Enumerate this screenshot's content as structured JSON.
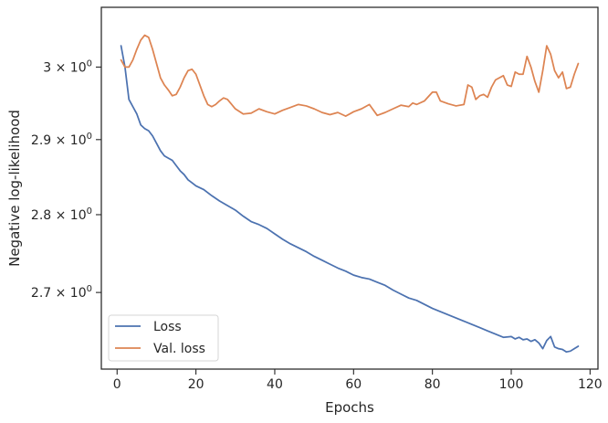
{
  "chart_data": {
    "type": "line",
    "xlabel": "Epochs",
    "ylabel": "Negative log-likelihood",
    "xlim": [
      -4,
      122
    ],
    "ylim": [
      2.605,
      3.085
    ],
    "yscale": "log",
    "grid": false,
    "legend": {
      "placement": "bottom-left"
    },
    "x_ticks": [
      {
        "value": 0,
        "label": "0"
      },
      {
        "value": 20,
        "label": "20"
      },
      {
        "value": 40,
        "label": "40"
      },
      {
        "value": 60,
        "label": "60"
      },
      {
        "value": 80,
        "label": "80"
      },
      {
        "value": 100,
        "label": "100"
      },
      {
        "value": 120,
        "label": "120"
      }
    ],
    "y_ticks": [
      {
        "value": 2.7,
        "base": "2.7 × 10",
        "exp": "0"
      },
      {
        "value": 2.8,
        "base": "2.8 × 10",
        "exp": "0"
      },
      {
        "value": 2.9,
        "base": "2.9 × 10",
        "exp": "0"
      },
      {
        "value": 3.0,
        "base": "3 × 10",
        "exp": "0"
      }
    ],
    "series": [
      {
        "name": "Loss",
        "color": "#4c72b0",
        "points": [
          [
            1,
            3.03
          ],
          [
            2,
            3.0
          ],
          [
            3,
            2.955
          ],
          [
            4,
            2.945
          ],
          [
            5,
            2.935
          ],
          [
            6,
            2.92
          ],
          [
            7,
            2.915
          ],
          [
            8,
            2.912
          ],
          [
            9,
            2.905
          ],
          [
            10,
            2.895
          ],
          [
            11,
            2.885
          ],
          [
            12,
            2.878
          ],
          [
            13,
            2.875
          ],
          [
            14,
            2.872
          ],
          [
            15,
            2.865
          ],
          [
            16,
            2.858
          ],
          [
            17,
            2.853
          ],
          [
            18,
            2.846
          ],
          [
            19,
            2.842
          ],
          [
            20,
            2.838
          ],
          [
            22,
            2.833
          ],
          [
            24,
            2.825
          ],
          [
            26,
            2.818
          ],
          [
            28,
            2.812
          ],
          [
            30,
            2.806
          ],
          [
            32,
            2.798
          ],
          [
            34,
            2.791
          ],
          [
            36,
            2.787
          ],
          [
            38,
            2.782
          ],
          [
            40,
            2.775
          ],
          [
            42,
            2.768
          ],
          [
            44,
            2.762
          ],
          [
            46,
            2.757
          ],
          [
            48,
            2.752
          ],
          [
            50,
            2.746
          ],
          [
            52,
            2.741
          ],
          [
            54,
            2.736
          ],
          [
            56,
            2.731
          ],
          [
            58,
            2.727
          ],
          [
            60,
            2.722
          ],
          [
            62,
            2.719
          ],
          [
            64,
            2.717
          ],
          [
            66,
            2.713
          ],
          [
            68,
            2.709
          ],
          [
            70,
            2.703
          ],
          [
            72,
            2.698
          ],
          [
            74,
            2.693
          ],
          [
            76,
            2.69
          ],
          [
            78,
            2.685
          ],
          [
            80,
            2.68
          ],
          [
            82,
            2.676
          ],
          [
            84,
            2.672
          ],
          [
            86,
            2.668
          ],
          [
            88,
            2.664
          ],
          [
            90,
            2.66
          ],
          [
            92,
            2.656
          ],
          [
            94,
            2.652
          ],
          [
            96,
            2.648
          ],
          [
            98,
            2.644
          ],
          [
            100,
            2.645
          ],
          [
            101,
            2.642
          ],
          [
            102,
            2.644
          ],
          [
            103,
            2.641
          ],
          [
            104,
            2.642
          ],
          [
            105,
            2.639
          ],
          [
            106,
            2.641
          ],
          [
            107,
            2.637
          ],
          [
            108,
            2.63
          ],
          [
            109,
            2.64
          ],
          [
            110,
            2.645
          ],
          [
            111,
            2.632
          ],
          [
            112,
            2.63
          ],
          [
            113,
            2.629
          ],
          [
            114,
            2.626
          ],
          [
            115,
            2.627
          ],
          [
            116,
            2.63
          ],
          [
            117,
            2.633
          ]
        ]
      },
      {
        "name": "Val. loss",
        "color": "#dd8452",
        "points": [
          [
            1,
            3.01
          ],
          [
            2,
            3.0
          ],
          [
            3,
            3.0
          ],
          [
            4,
            3.01
          ],
          [
            5,
            3.025
          ],
          [
            6,
            3.038
          ],
          [
            7,
            3.045
          ],
          [
            8,
            3.042
          ],
          [
            9,
            3.025
          ],
          [
            10,
            3.005
          ],
          [
            11,
            2.985
          ],
          [
            12,
            2.975
          ],
          [
            13,
            2.968
          ],
          [
            14,
            2.96
          ],
          [
            15,
            2.962
          ],
          [
            16,
            2.972
          ],
          [
            17,
            2.985
          ],
          [
            18,
            2.995
          ],
          [
            19,
            2.997
          ],
          [
            20,
            2.99
          ],
          [
            21,
            2.975
          ],
          [
            22,
            2.96
          ],
          [
            23,
            2.948
          ],
          [
            24,
            2.945
          ],
          [
            25,
            2.948
          ],
          [
            26,
            2.953
          ],
          [
            27,
            2.957
          ],
          [
            28,
            2.955
          ],
          [
            30,
            2.942
          ],
          [
            32,
            2.935
          ],
          [
            34,
            2.936
          ],
          [
            36,
            2.942
          ],
          [
            38,
            2.938
          ],
          [
            40,
            2.935
          ],
          [
            42,
            2.94
          ],
          [
            44,
            2.944
          ],
          [
            46,
            2.948
          ],
          [
            48,
            2.946
          ],
          [
            50,
            2.942
          ],
          [
            52,
            2.937
          ],
          [
            54,
            2.934
          ],
          [
            56,
            2.937
          ],
          [
            58,
            2.932
          ],
          [
            60,
            2.938
          ],
          [
            62,
            2.942
          ],
          [
            64,
            2.948
          ],
          [
            66,
            2.933
          ],
          [
            68,
            2.937
          ],
          [
            70,
            2.942
          ],
          [
            72,
            2.947
          ],
          [
            74,
            2.945
          ],
          [
            75,
            2.95
          ],
          [
            76,
            2.948
          ],
          [
            78,
            2.953
          ],
          [
            80,
            2.965
          ],
          [
            81,
            2.965
          ],
          [
            82,
            2.953
          ],
          [
            84,
            2.949
          ],
          [
            86,
            2.946
          ],
          [
            88,
            2.948
          ],
          [
            89,
            2.975
          ],
          [
            90,
            2.972
          ],
          [
            91,
            2.955
          ],
          [
            92,
            2.96
          ],
          [
            93,
            2.962
          ],
          [
            94,
            2.958
          ],
          [
            95,
            2.972
          ],
          [
            96,
            2.982
          ],
          [
            97,
            2.985
          ],
          [
            98,
            2.988
          ],
          [
            99,
            2.975
          ],
          [
            100,
            2.973
          ],
          [
            101,
            2.993
          ],
          [
            102,
            2.99
          ],
          [
            103,
            2.99
          ],
          [
            104,
            3.015
          ],
          [
            105,
            3.0
          ],
          [
            106,
            2.98
          ],
          [
            107,
            2.965
          ],
          [
            108,
            2.995
          ],
          [
            109,
            3.03
          ],
          [
            110,
            3.018
          ],
          [
            111,
            2.995
          ],
          [
            112,
            2.985
          ],
          [
            113,
            2.993
          ],
          [
            114,
            2.97
          ],
          [
            115,
            2.972
          ],
          [
            116,
            2.99
          ],
          [
            117,
            3.005
          ]
        ]
      }
    ]
  }
}
